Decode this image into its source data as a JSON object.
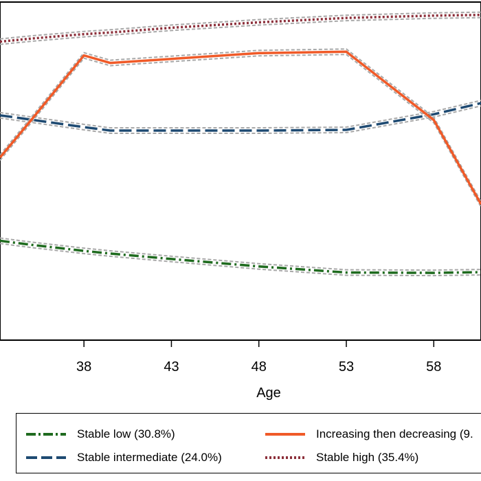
{
  "chart_data": {
    "type": "line",
    "xlabel": "Age",
    "x_ticks": [
      38,
      43,
      48,
      53,
      58
    ],
    "xlim": [
      33.2,
      60.7
    ],
    "ylim": [
      0,
      1
    ],
    "grid": false,
    "legend_position": "bottom",
    "series": [
      {
        "name": "Stable low (30.8%)",
        "color": "#1f6b1f",
        "dash": "dash-dot",
        "x": [
          33.2,
          35,
          38,
          39.5,
          43,
          48,
          53,
          58,
          60.7
        ],
        "y": [
          0.294,
          0.282,
          0.264,
          0.256,
          0.24,
          0.218,
          0.2,
          0.199,
          0.201
        ]
      },
      {
        "name": "Stable intermediate (24.0%)",
        "color": "#1e4a72",
        "dash": "dash",
        "x": [
          33.2,
          35,
          38,
          39.5,
          43,
          48,
          53,
          58,
          60.7
        ],
        "y": [
          0.665,
          0.652,
          0.63,
          0.62,
          0.62,
          0.62,
          0.622,
          0.668,
          0.701
        ]
      },
      {
        "name": "Increasing then decreasing (9.",
        "color": "#f05a28",
        "dash": "solid",
        "x": [
          33.2,
          35,
          38,
          39.5,
          43,
          48,
          53,
          58,
          60.7
        ],
        "y": [
          0.54,
          0.652,
          0.842,
          0.82,
          0.832,
          0.849,
          0.853,
          0.651,
          0.402
        ]
      },
      {
        "name": "Stable high (35.4%)",
        "color": "#8c2f3a",
        "dash": "dot",
        "x": [
          33.2,
          35,
          38,
          39.5,
          43,
          48,
          53,
          58,
          60.7
        ],
        "y": [
          0.883,
          0.892,
          0.905,
          0.91,
          0.924,
          0.94,
          0.953,
          0.96,
          0.962
        ]
      }
    ]
  }
}
